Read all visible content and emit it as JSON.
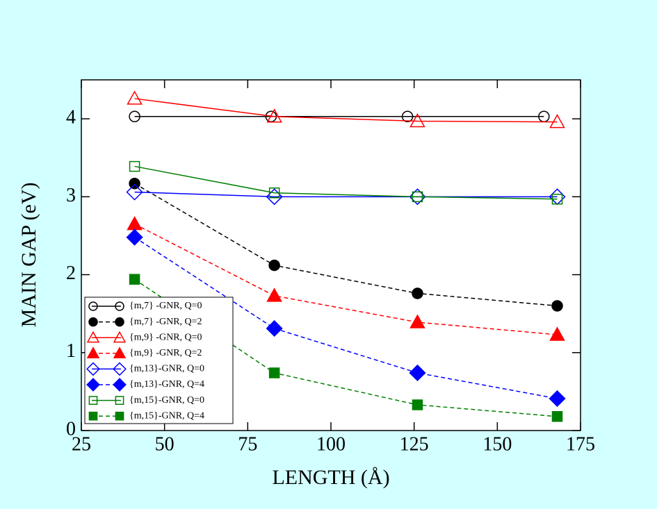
{
  "chart_data": {
    "type": "line",
    "xlabel": "LENGTH (Å)",
    "ylabel": "MAIN GAP (eV)",
    "xlim": [
      25,
      175
    ],
    "xticks": [
      25,
      50,
      75,
      100,
      125,
      150,
      175
    ],
    "ylim": [
      0,
      4.5
    ],
    "yticks": [
      0,
      1,
      2,
      3,
      4
    ],
    "legend": "lower-left",
    "series": [
      {
        "name": "{m,7} -GNR,  Q=0",
        "color": "#000000",
        "marker": "circle",
        "filled": false,
        "dashed": false,
        "x": [
          41,
          82,
          123,
          164
        ],
        "values": [
          4.03,
          4.03,
          4.03,
          4.03
        ]
      },
      {
        "name": "{m,7} -GNR,  Q=2",
        "color": "#000000",
        "marker": "circle",
        "filled": true,
        "dashed": true,
        "x": [
          41,
          83,
          126,
          168
        ],
        "values": [
          3.17,
          2.12,
          1.76,
          1.6
        ]
      },
      {
        "name": "{m,9} -GNR,  Q=0",
        "color": "#ff0000",
        "marker": "triangle",
        "filled": false,
        "dashed": false,
        "x": [
          41,
          83,
          126,
          168
        ],
        "values": [
          4.26,
          4.03,
          3.97,
          3.96
        ]
      },
      {
        "name": "{m,9} -GNR,  Q=2",
        "color": "#ff0000",
        "marker": "triangle",
        "filled": true,
        "dashed": true,
        "x": [
          41,
          83,
          126,
          168
        ],
        "values": [
          2.65,
          1.73,
          1.39,
          1.23
        ]
      },
      {
        "name": "{m,13}-GNR, Q=0",
        "color": "#0000ff",
        "marker": "diamond",
        "filled": false,
        "dashed": false,
        "x": [
          41,
          83,
          126,
          168
        ],
        "values": [
          3.06,
          3.0,
          3.0,
          3.0
        ]
      },
      {
        "name": "{m,13}-GNR, Q=4",
        "color": "#0000ff",
        "marker": "diamond",
        "filled": true,
        "dashed": true,
        "x": [
          41,
          83,
          126,
          168
        ],
        "values": [
          2.48,
          1.31,
          0.74,
          0.41
        ]
      },
      {
        "name": "{m,15}-GNR, Q=0",
        "color": "#008000",
        "marker": "square",
        "filled": false,
        "dashed": false,
        "x": [
          41,
          83,
          126,
          168
        ],
        "values": [
          3.39,
          3.05,
          3.0,
          2.97
        ]
      },
      {
        "name": "{m,15}-GNR, Q=4",
        "color": "#008000",
        "marker": "square",
        "filled": true,
        "dashed": true,
        "x": [
          41,
          83,
          126,
          168
        ],
        "values": [
          1.94,
          0.74,
          0.33,
          0.18
        ]
      }
    ]
  }
}
